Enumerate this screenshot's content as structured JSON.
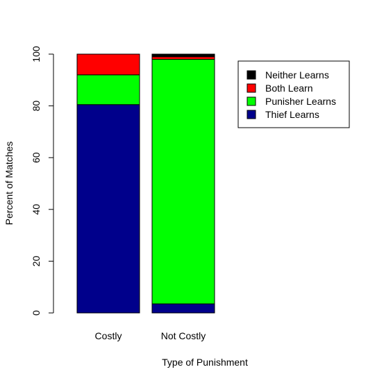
{
  "chart_data": {
    "type": "bar",
    "stacked": true,
    "title": "",
    "xlabel": "Type of Punishment",
    "ylabel": "Percent of Matches",
    "ylim": [
      0,
      100
    ],
    "yticks": [
      0,
      20,
      40,
      60,
      80,
      100
    ],
    "categories": [
      "Costly",
      "Not Costly"
    ],
    "series": [
      {
        "name": "Thief Learns",
        "color": "#00008B",
        "values": [
          80.5,
          3.5
        ]
      },
      {
        "name": "Punisher Learns",
        "color": "#00FF00",
        "values": [
          11.5,
          94.5
        ]
      },
      {
        "name": "Both Learn",
        "color": "#FF0000",
        "values": [
          8.0,
          1.0
        ]
      },
      {
        "name": "Neither Learns",
        "color": "#000000",
        "values": [
          0.0,
          1.0
        ]
      }
    ],
    "legend": {
      "placement": "top-right",
      "order": [
        "Neither Learns",
        "Both Learn",
        "Punisher Learns",
        "Thief Learns"
      ]
    },
    "grid": false
  }
}
